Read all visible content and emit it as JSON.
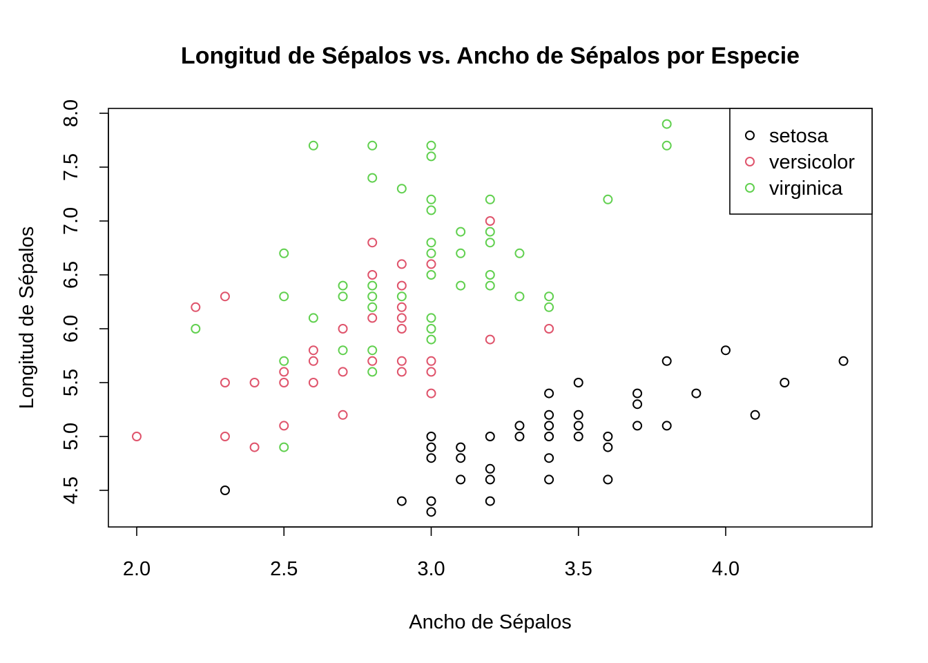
{
  "chart_data": {
    "type": "scatter",
    "title": "Longitud de Sépalos vs. Ancho de Sépalos por Especie",
    "xlabel": "Ancho de Sépalos",
    "ylabel": "Longitud de Sépalos",
    "xlim": [
      2.0,
      4.4
    ],
    "ylim": [
      4.3,
      8.0
    ],
    "x_ticks": [
      "2.0",
      "2.5",
      "3.0",
      "3.5",
      "4.0"
    ],
    "y_ticks": [
      "4.5",
      "5.0",
      "5.5",
      "6.0",
      "6.5",
      "7.0",
      "7.5",
      "8.0"
    ],
    "grid": false,
    "legend_position": "top-right",
    "series": [
      {
        "name": "setosa",
        "color": "#000000",
        "points": [
          [
            2.3,
            4.5
          ],
          [
            2.9,
            4.4
          ],
          [
            3.0,
            4.4
          ],
          [
            3.0,
            4.3
          ],
          [
            3.0,
            4.8
          ],
          [
            3.0,
            4.9
          ],
          [
            3.0,
            5.0
          ],
          [
            3.1,
            4.6
          ],
          [
            3.1,
            4.8
          ],
          [
            3.1,
            4.9
          ],
          [
            3.2,
            4.4
          ],
          [
            3.2,
            4.6
          ],
          [
            3.2,
            4.7
          ],
          [
            3.2,
            5.0
          ],
          [
            3.3,
            5.0
          ],
          [
            3.3,
            5.1
          ],
          [
            3.4,
            4.6
          ],
          [
            3.4,
            4.8
          ],
          [
            3.4,
            5.0
          ],
          [
            3.4,
            5.1
          ],
          [
            3.4,
            5.2
          ],
          [
            3.4,
            5.4
          ],
          [
            3.5,
            5.0
          ],
          [
            3.5,
            5.1
          ],
          [
            3.5,
            5.2
          ],
          [
            3.5,
            5.5
          ],
          [
            3.6,
            4.6
          ],
          [
            3.6,
            4.9
          ],
          [
            3.6,
            5.0
          ],
          [
            3.7,
            5.1
          ],
          [
            3.7,
            5.3
          ],
          [
            3.7,
            5.4
          ],
          [
            3.8,
            5.1
          ],
          [
            3.8,
            5.7
          ],
          [
            3.9,
            5.4
          ],
          [
            4.0,
            5.8
          ],
          [
            4.1,
            5.2
          ],
          [
            4.2,
            5.5
          ],
          [
            4.4,
            5.7
          ]
        ]
      },
      {
        "name": "versicolor",
        "color": "#DF536B",
        "points": [
          [
            2.0,
            5.0
          ],
          [
            2.2,
            6.2
          ],
          [
            2.3,
            5.0
          ],
          [
            2.3,
            5.5
          ],
          [
            2.3,
            6.3
          ],
          [
            2.4,
            4.9
          ],
          [
            2.4,
            5.5
          ],
          [
            2.5,
            5.1
          ],
          [
            2.5,
            5.5
          ],
          [
            2.5,
            5.6
          ],
          [
            2.6,
            5.5
          ],
          [
            2.6,
            5.7
          ],
          [
            2.6,
            5.8
          ],
          [
            2.7,
            5.2
          ],
          [
            2.7,
            5.6
          ],
          [
            2.7,
            6.0
          ],
          [
            2.8,
            5.7
          ],
          [
            2.8,
            6.1
          ],
          [
            2.8,
            6.5
          ],
          [
            2.8,
            6.8
          ],
          [
            2.9,
            5.6
          ],
          [
            2.9,
            5.7
          ],
          [
            2.9,
            6.0
          ],
          [
            2.9,
            6.1
          ],
          [
            2.9,
            6.2
          ],
          [
            2.9,
            6.4
          ],
          [
            2.9,
            6.6
          ],
          [
            3.0,
            5.4
          ],
          [
            3.0,
            5.6
          ],
          [
            3.0,
            5.7
          ],
          [
            3.0,
            6.6
          ],
          [
            3.2,
            5.9
          ],
          [
            3.2,
            7.0
          ],
          [
            3.4,
            6.0
          ]
        ]
      },
      {
        "name": "virginica",
        "color": "#61D04F",
        "points": [
          [
            2.2,
            6.0
          ],
          [
            2.5,
            4.9
          ],
          [
            2.5,
            5.7
          ],
          [
            2.5,
            6.3
          ],
          [
            2.5,
            6.7
          ],
          [
            2.6,
            6.1
          ],
          [
            2.6,
            7.7
          ],
          [
            2.7,
            5.8
          ],
          [
            2.7,
            6.3
          ],
          [
            2.7,
            6.4
          ],
          [
            2.8,
            5.6
          ],
          [
            2.8,
            5.8
          ],
          [
            2.8,
            6.2
          ],
          [
            2.8,
            6.3
          ],
          [
            2.8,
            6.4
          ],
          [
            2.8,
            7.4
          ],
          [
            2.8,
            7.7
          ],
          [
            2.9,
            6.3
          ],
          [
            2.9,
            7.3
          ],
          [
            3.0,
            5.9
          ],
          [
            3.0,
            6.0
          ],
          [
            3.0,
            6.1
          ],
          [
            3.0,
            6.5
          ],
          [
            3.0,
            6.7
          ],
          [
            3.0,
            6.8
          ],
          [
            3.0,
            7.1
          ],
          [
            3.0,
            7.2
          ],
          [
            3.0,
            7.6
          ],
          [
            3.0,
            7.7
          ],
          [
            3.1,
            6.4
          ],
          [
            3.1,
            6.7
          ],
          [
            3.1,
            6.9
          ],
          [
            3.2,
            6.4
          ],
          [
            3.2,
            6.5
          ],
          [
            3.2,
            6.8
          ],
          [
            3.2,
            6.9
          ],
          [
            3.2,
            7.2
          ],
          [
            3.3,
            6.3
          ],
          [
            3.3,
            6.7
          ],
          [
            3.4,
            6.2
          ],
          [
            3.4,
            6.3
          ],
          [
            3.6,
            7.2
          ],
          [
            3.8,
            7.7
          ],
          [
            3.8,
            7.9
          ]
        ]
      }
    ]
  }
}
